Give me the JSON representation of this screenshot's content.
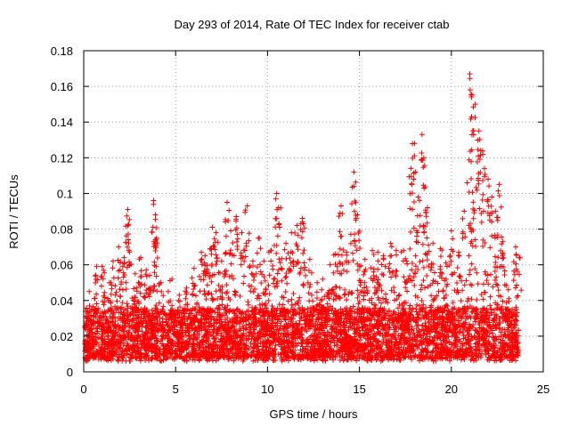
{
  "chart_data": {
    "type": "scatter",
    "title": "Day 293 of 2014, Rate Of TEC Index for receiver ctab",
    "xlabel": "GPS time / hours",
    "ylabel": "ROTI / TECUs",
    "xlim": [
      0,
      25
    ],
    "ylim": [
      0,
      0.18
    ],
    "xticks": [
      "0",
      "5",
      "10",
      "15",
      "20",
      "25"
    ],
    "yticks": [
      "0",
      "0.02",
      "0.04",
      "0.06",
      "0.08",
      "0.1",
      "0.12",
      "0.14",
      "0.16",
      "0.18"
    ],
    "grid": true,
    "marker": "+",
    "color": "#ff0000",
    "series": [
      {
        "name": "ROTI",
        "points": [
          [
            0.3,
            0.045
          ],
          [
            0.7,
            0.059
          ],
          [
            1.0,
            0.059
          ],
          [
            1.4,
            0.05
          ],
          [
            1.6,
            0.062
          ],
          [
            1.9,
            0.07
          ],
          [
            2.2,
            0.064
          ],
          [
            2.4,
            0.091
          ],
          [
            2.4,
            0.082
          ],
          [
            2.8,
            0.055
          ],
          [
            3.1,
            0.064
          ],
          [
            3.4,
            0.057
          ],
          [
            3.8,
            0.096
          ],
          [
            3.9,
            0.088
          ],
          [
            3.9,
            0.074
          ],
          [
            4.2,
            0.05
          ],
          [
            4.6,
            0.045
          ],
          [
            4.8,
            0.052
          ],
          [
            5.2,
            0.043
          ],
          [
            5.6,
            0.047
          ],
          [
            6.0,
            0.058
          ],
          [
            6.4,
            0.067
          ],
          [
            6.6,
            0.065
          ],
          [
            6.9,
            0.069
          ],
          [
            7.0,
            0.081
          ],
          [
            7.2,
            0.078
          ],
          [
            7.5,
            0.062
          ],
          [
            7.8,
            0.095
          ],
          [
            8.0,
            0.079
          ],
          [
            8.3,
            0.087
          ],
          [
            8.6,
            0.078
          ],
          [
            8.9,
            0.093
          ],
          [
            9.2,
            0.062
          ],
          [
            9.5,
            0.075
          ],
          [
            9.8,
            0.062
          ],
          [
            10.2,
            0.068
          ],
          [
            10.5,
            0.1
          ],
          [
            10.6,
            0.092
          ],
          [
            11.0,
            0.072
          ],
          [
            11.3,
            0.078
          ],
          [
            11.6,
            0.082
          ],
          [
            11.9,
            0.086
          ],
          [
            12.3,
            0.063
          ],
          [
            12.7,
            0.05
          ],
          [
            13.0,
            0.052
          ],
          [
            13.4,
            0.06
          ],
          [
            13.7,
            0.066
          ],
          [
            14.0,
            0.093
          ],
          [
            14.3,
            0.067
          ],
          [
            14.7,
            0.112
          ],
          [
            14.7,
            0.104
          ],
          [
            14.9,
            0.088
          ],
          [
            15.3,
            0.063
          ],
          [
            15.7,
            0.068
          ],
          [
            16.0,
            0.067
          ],
          [
            16.3,
            0.065
          ],
          [
            16.7,
            0.072
          ],
          [
            17.0,
            0.068
          ],
          [
            17.4,
            0.068
          ],
          [
            17.8,
            0.114
          ],
          [
            18.0,
            0.128
          ],
          [
            18.2,
            0.098
          ],
          [
            18.4,
            0.133
          ],
          [
            18.5,
            0.12
          ],
          [
            18.7,
            0.092
          ],
          [
            19.0,
            0.072
          ],
          [
            19.4,
            0.069
          ],
          [
            19.7,
            0.061
          ],
          [
            20.0,
            0.079
          ],
          [
            20.4,
            0.067
          ],
          [
            20.7,
            0.09
          ],
          [
            21.0,
            0.167
          ],
          [
            21.1,
            0.143
          ],
          [
            21.3,
            0.15
          ],
          [
            21.5,
            0.135
          ],
          [
            21.6,
            0.124
          ],
          [
            21.8,
            0.114
          ],
          [
            22.0,
            0.108
          ],
          [
            22.2,
            0.098
          ],
          [
            22.4,
            0.09
          ],
          [
            22.6,
            0.105
          ],
          [
            22.8,
            0.073
          ],
          [
            23.1,
            0.046
          ],
          [
            23.5,
            0.07
          ],
          [
            23.7,
            0.064
          ]
        ]
      }
    ]
  }
}
